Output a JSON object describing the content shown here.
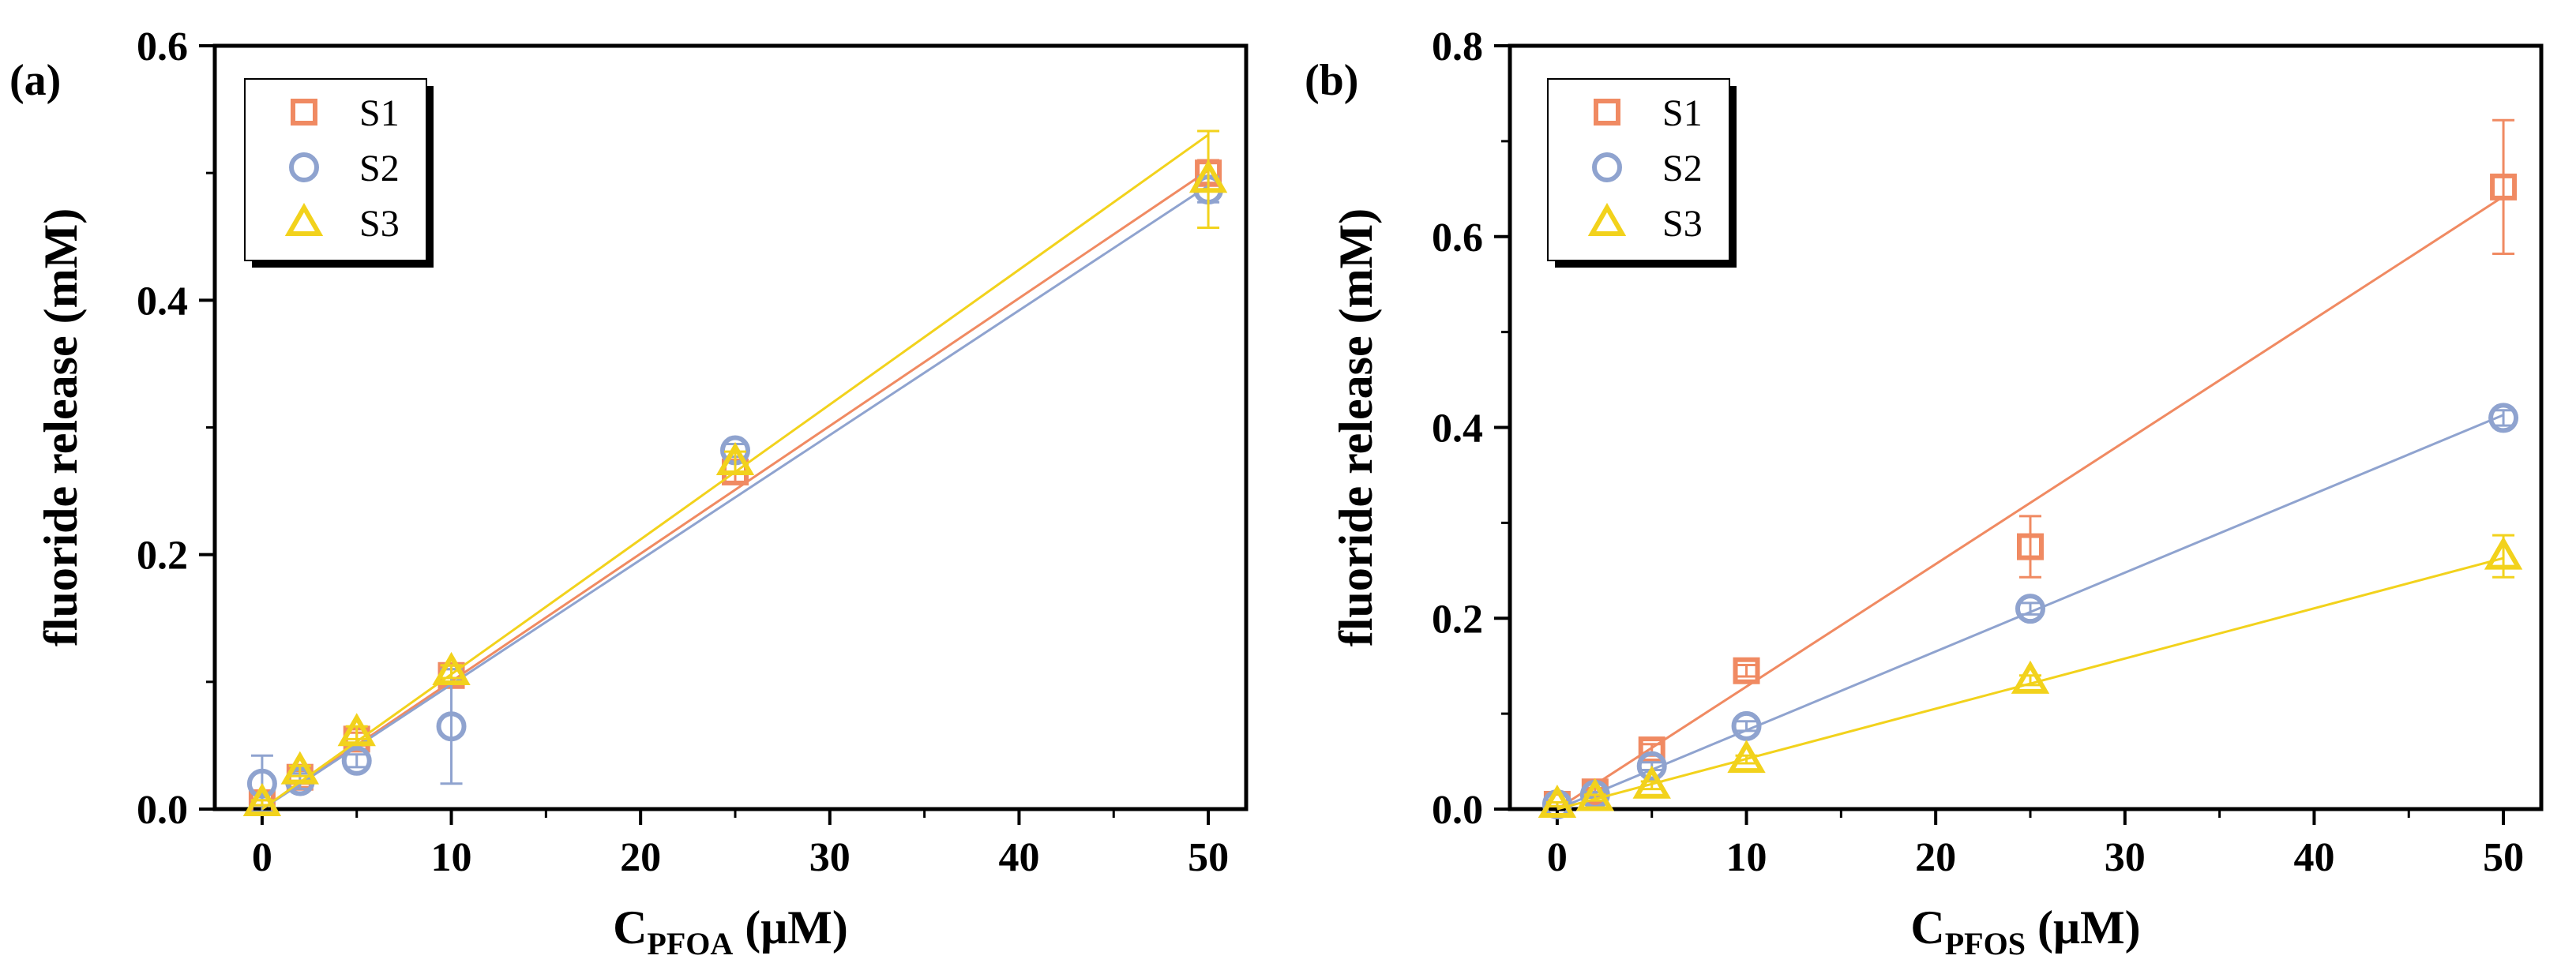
{
  "colors": {
    "S1": "#F08A62",
    "S2": "#8FA3CF",
    "S3": "#F2D21C"
  },
  "chart_data": [
    {
      "type": "scatter",
      "panel_label": "(a)",
      "xlabel_main": "C",
      "xlabel_sub": "PFOA",
      "xlabel_unit": "(μM)",
      "ylabel": "fluoride release (mM)",
      "xlim": [
        -2.5,
        52
      ],
      "ylim": [
        0,
        0.6
      ],
      "xticks": [
        0,
        10,
        20,
        30,
        40,
        50
      ],
      "yticks": [
        0.0,
        0.2,
        0.4,
        0.6
      ],
      "xtick_labels": [
        "0",
        "10",
        "20",
        "30",
        "40",
        "50"
      ],
      "ytick_labels": [
        "0.0",
        "0.2",
        "0.4",
        "0.6"
      ],
      "legend_position": "top-left",
      "series": [
        {
          "name": "S1",
          "marker": "square",
          "x": [
            0,
            2,
            5,
            10,
            25,
            50
          ],
          "y": [
            0.005,
            0.025,
            0.055,
            0.105,
            0.265,
            0.5
          ],
          "err": [
            0.002,
            0.005,
            0.005,
            0.005,
            0.008,
            0.01
          ],
          "fit": [
            [
              0,
              0.0
            ],
            [
              50,
              0.502
            ]
          ]
        },
        {
          "name": "S2",
          "marker": "circle",
          "x": [
            0,
            2,
            5,
            10,
            25,
            50
          ],
          "y": [
            0.02,
            0.022,
            0.038,
            0.065,
            0.282,
            0.487
          ],
          "err": [
            0.022,
            0.006,
            0.005,
            0.045,
            0.005,
            0.01
          ],
          "fit": [
            [
              0,
              0.0
            ],
            [
              50,
              0.49
            ]
          ]
        },
        {
          "name": "S3",
          "marker": "triangle",
          "x": [
            0,
            2,
            5,
            10,
            25,
            50
          ],
          "y": [
            0.005,
            0.03,
            0.06,
            0.108,
            0.273,
            0.495
          ],
          "err": [
            0.002,
            0.004,
            0.005,
            0.005,
            0.008,
            0.038
          ],
          "fit": [
            [
              0,
              0.0
            ],
            [
              50,
              0.53
            ]
          ]
        }
      ]
    },
    {
      "type": "scatter",
      "panel_label": "(b)",
      "xlabel_main": "C",
      "xlabel_sub": "PFOS",
      "xlabel_unit": "(μM)",
      "ylabel": "fluoride release (mM)",
      "xlim": [
        -2.5,
        52
      ],
      "ylim": [
        0,
        0.8
      ],
      "xticks": [
        0,
        10,
        20,
        30,
        40,
        50
      ],
      "yticks": [
        0.0,
        0.2,
        0.4,
        0.6,
        0.8
      ],
      "xtick_labels": [
        "0",
        "10",
        "20",
        "30",
        "40",
        "50"
      ],
      "ytick_labels": [
        "0.0",
        "0.2",
        "0.4",
        "0.6",
        "0.8"
      ],
      "legend_position": "top-left",
      "series": [
        {
          "name": "S1",
          "marker": "square",
          "x": [
            0,
            2,
            5,
            10,
            25,
            50
          ],
          "y": [
            0.005,
            0.018,
            0.062,
            0.145,
            0.275,
            0.652
          ],
          "err": [
            0.002,
            0.004,
            0.006,
            0.006,
            0.032,
            0.07
          ],
          "fit": [
            [
              0,
              0.0
            ],
            [
              50,
              0.642
            ]
          ]
        },
        {
          "name": "S2",
          "marker": "circle",
          "x": [
            0,
            2,
            5,
            10,
            25,
            50
          ],
          "y": [
            0.005,
            0.015,
            0.045,
            0.087,
            0.21,
            0.41
          ],
          "err": [
            0.002,
            0.003,
            0.004,
            0.005,
            0.006,
            0.008
          ],
          "fit": [
            [
              0,
              0.0
            ],
            [
              50,
              0.413
            ]
          ]
        },
        {
          "name": "S3",
          "marker": "triangle",
          "x": [
            0,
            2,
            5,
            10,
            25,
            50
          ],
          "y": [
            0.005,
            0.012,
            0.025,
            0.052,
            0.135,
            0.265
          ],
          "err": [
            0.002,
            0.003,
            0.004,
            0.004,
            0.005,
            0.022
          ],
          "fit": [
            [
              0,
              0.0
            ],
            [
              50,
              0.263
            ]
          ]
        }
      ]
    }
  ]
}
